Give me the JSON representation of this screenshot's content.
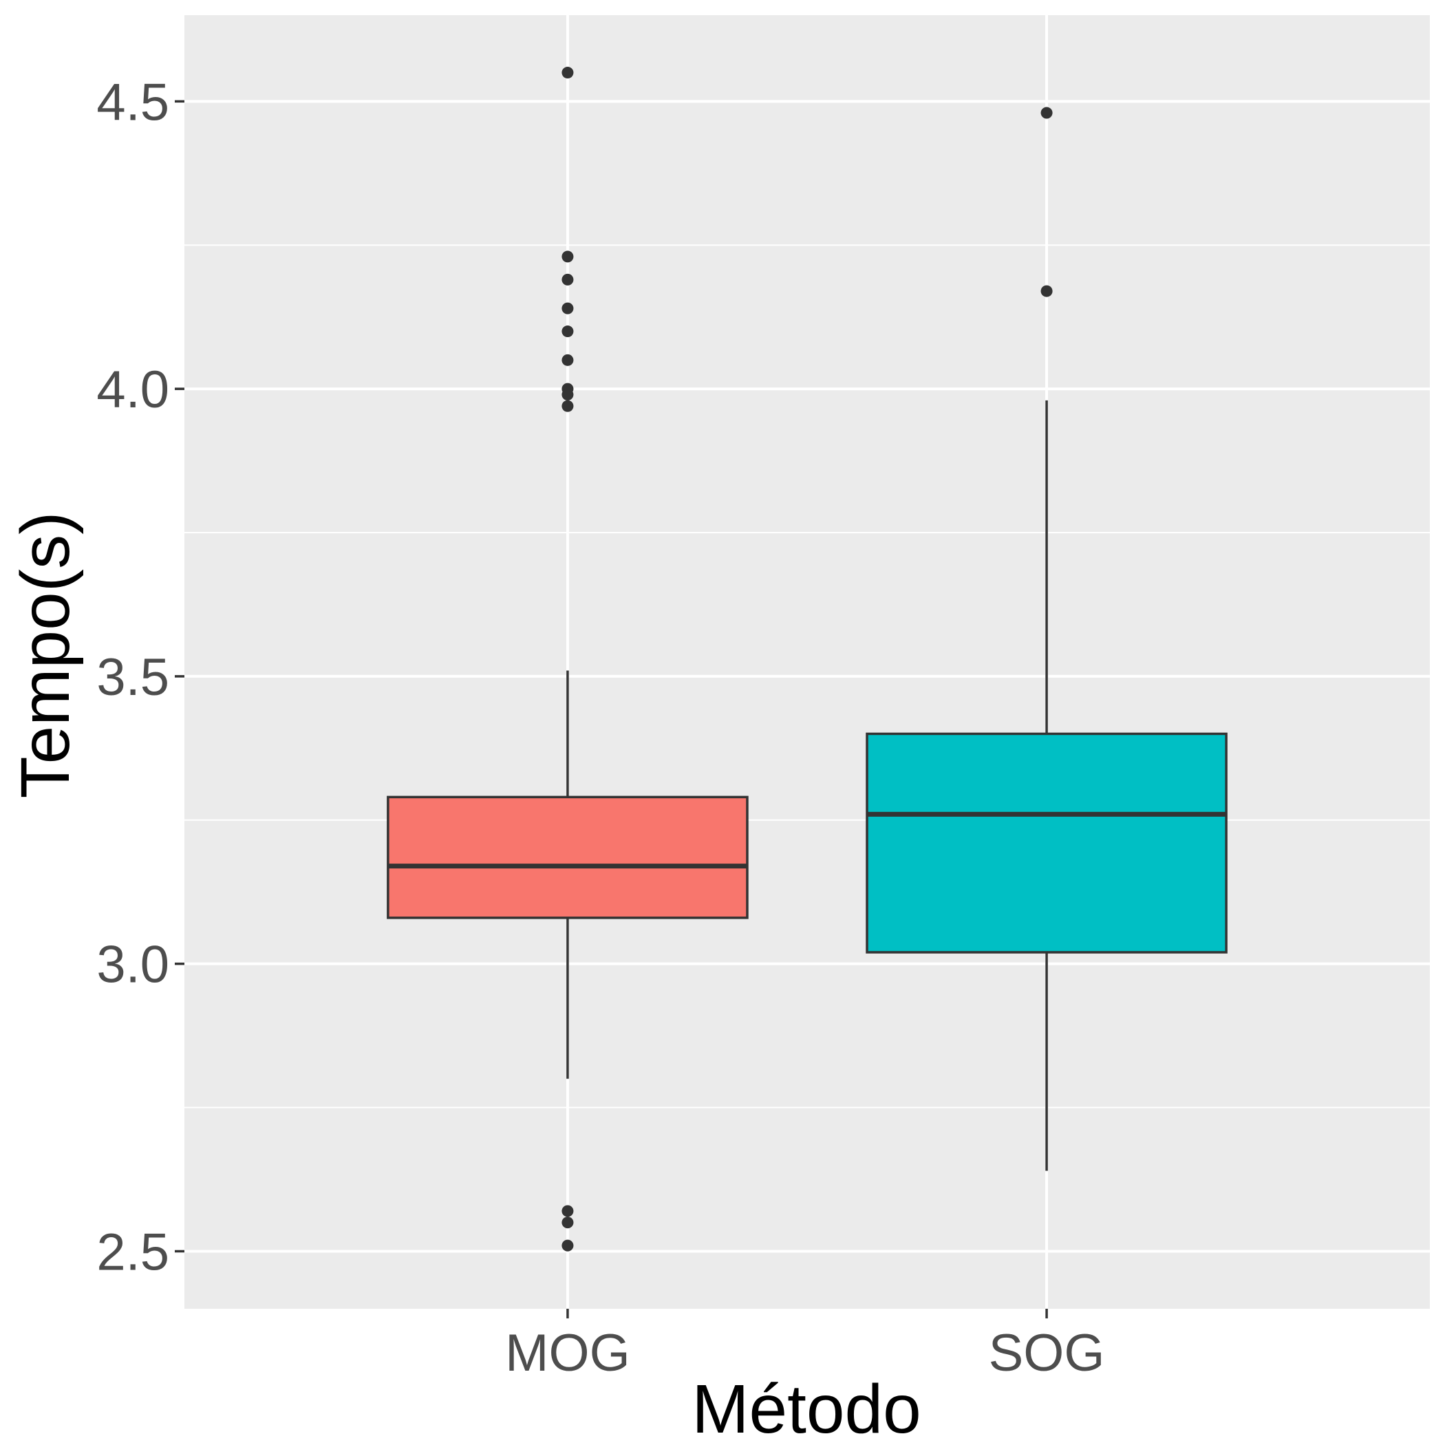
{
  "chart_data": {
    "type": "boxplot",
    "title": "",
    "xlabel": "Método",
    "ylabel": "Tempo(s)",
    "ylim": [
      2.4,
      4.65
    ],
    "yticks": [
      2.5,
      3.0,
      3.5,
      4.0,
      4.5
    ],
    "ytick_labels": [
      "2.5",
      "3.0",
      "3.5",
      "4.0",
      "4.5"
    ],
    "y_minor_ticks": [
      2.75,
      3.25,
      3.75,
      4.25
    ],
    "grid": true,
    "legend": "none",
    "colors": {
      "panel": "#ebebeb",
      "grid": "#ffffff",
      "box_line": "#333333",
      "point": "#333333"
    },
    "categories": [
      "MOG",
      "SOG"
    ],
    "boxes": [
      {
        "category": "MOG",
        "fill": "#f8766d",
        "q1": 3.08,
        "median": 3.17,
        "q3": 3.29,
        "whisker_low": 2.8,
        "whisker_high": 3.51,
        "outliers": [
          4.55,
          4.23,
          4.19,
          4.14,
          4.1,
          4.05,
          4.0,
          3.99,
          3.97,
          2.57,
          2.55,
          2.51
        ]
      },
      {
        "category": "SOG",
        "fill": "#00bfc4",
        "q1": 3.02,
        "median": 3.26,
        "q3": 3.4,
        "whisker_low": 2.64,
        "whisker_high": 3.98,
        "outliers": [
          4.48,
          4.17
        ]
      }
    ]
  }
}
